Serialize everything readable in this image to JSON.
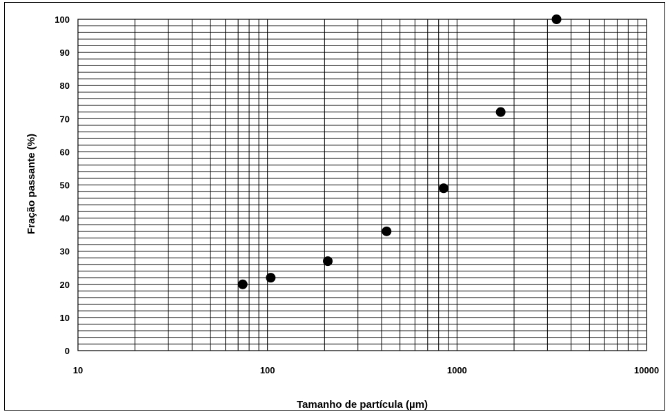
{
  "chart_data": {
    "type": "scatter",
    "title": "",
    "xlabel": "Tamanho de partícula (µm)",
    "ylabel": "Fração passante (%)",
    "x_scale": "log",
    "xlim": [
      10,
      10000
    ],
    "ylim": [
      0,
      100
    ],
    "x_ticks": [
      "10",
      "100",
      "1000",
      "10000"
    ],
    "y_ticks": [
      "0",
      "10",
      "20",
      "30",
      "40",
      "50",
      "60",
      "70",
      "80",
      "90",
      "100"
    ],
    "grid": true,
    "legend": "none",
    "marker_color": "#000000",
    "series": [
      {
        "x": [
          74,
          104,
          208,
          425,
          850,
          1700,
          3350
        ],
        "y": [
          20,
          22,
          27,
          36,
          49,
          72,
          100
        ]
      }
    ]
  }
}
